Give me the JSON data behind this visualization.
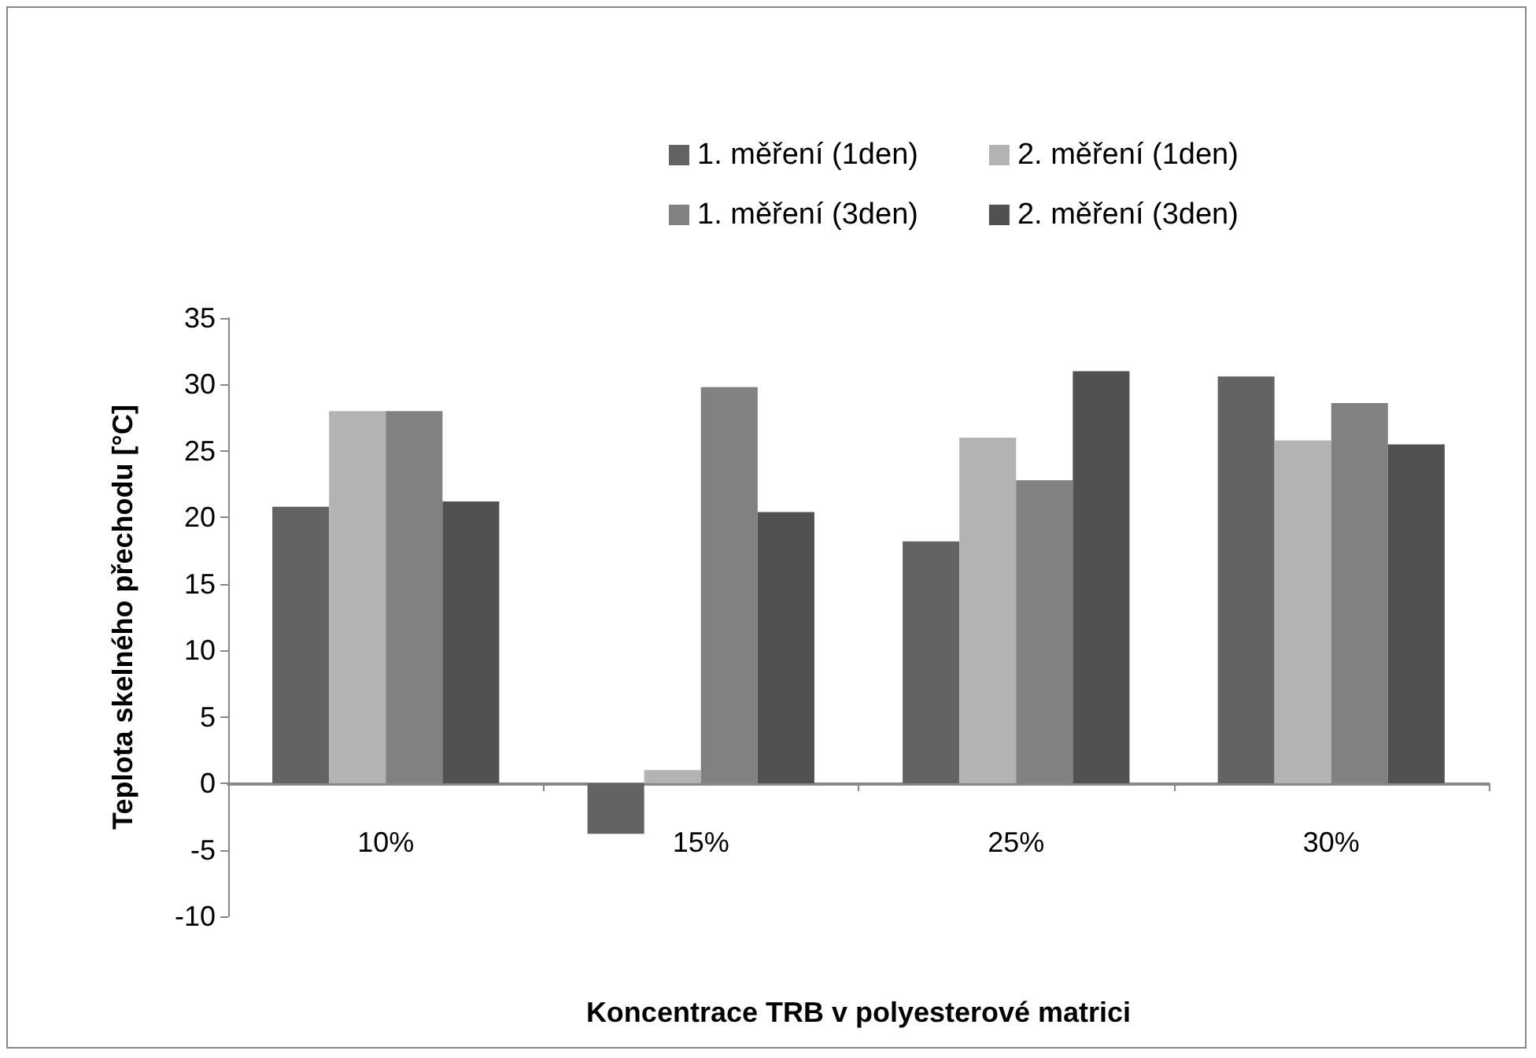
{
  "chart_data": {
    "type": "bar",
    "xlabel": "Koncentrace TRB v polyesterové matrici",
    "ylabel": "Teplota skelného přechodu [°C]",
    "categories": [
      "10%",
      "15%",
      "25%",
      "30%"
    ],
    "series": [
      {
        "name": "1. měření (1den)",
        "color": "#636363",
        "values": [
          20.8,
          -3.8,
          18.2,
          30.6
        ]
      },
      {
        "name": "2. měření (1den)",
        "color": "#b3b3b3",
        "values": [
          28,
          1,
          26,
          25.8
        ]
      },
      {
        "name": "1. měření (3den)",
        "color": "#818181",
        "values": [
          28,
          29.8,
          22.8,
          28.6
        ]
      },
      {
        "name": "2. měření (3den)",
        "color": "#515151",
        "values": [
          21.2,
          20.4,
          31,
          25.5
        ]
      }
    ],
    "ylim": [
      -10,
      35
    ],
    "yticks": [
      -10,
      -5,
      0,
      5,
      10,
      15,
      20,
      25,
      30,
      35
    ],
    "legend": "top right"
  }
}
